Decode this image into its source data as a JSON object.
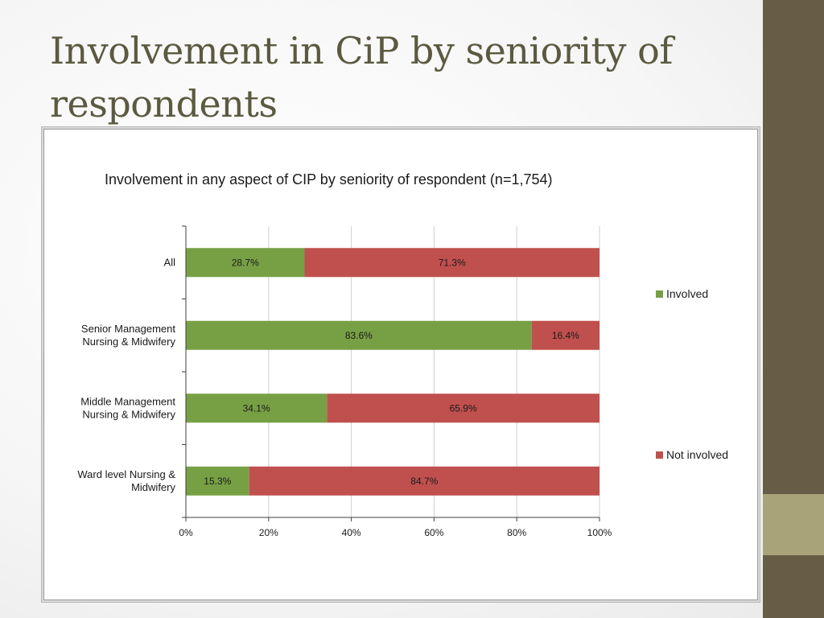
{
  "slide": {
    "title": "Involvement in CiP by seniority  of respondents"
  },
  "colors": {
    "sidebar_dark": "#675c45",
    "sidebar_light": "#a8a379",
    "title_text": "#5b5a40",
    "involved": "#77a044",
    "not_involved": "#c0504d",
    "gridline": "#cfcfcf",
    "axis": "#404040"
  },
  "chart_data": {
    "type": "bar",
    "orientation": "horizontal",
    "stacked": true,
    "title": "Involvement in any aspect of CIP  by seniority of respondent (n=1,754)",
    "categories": [
      [
        "All"
      ],
      [
        "Senior Management",
        "Nursing & Midwifery"
      ],
      [
        "Middle Management",
        "Nursing & Midwifery"
      ],
      [
        "Ward level  Nursing &",
        "Midwifery"
      ]
    ],
    "series": [
      {
        "name": "Involved",
        "values": [
          28.7,
          83.6,
          34.1,
          15.3
        ],
        "labels": [
          "28.7%",
          "83.6%",
          "34.1%",
          "15.3%"
        ]
      },
      {
        "name": "Not involved",
        "values": [
          71.3,
          16.4,
          65.9,
          84.7
        ],
        "labels": [
          "71.3%",
          "16.4%",
          "65.9%",
          "84.7%"
        ]
      }
    ],
    "xlim": [
      0,
      100
    ],
    "xticks": [
      0,
      20,
      40,
      60,
      80,
      100
    ],
    "xtick_labels": [
      "0%",
      "20%",
      "40%",
      "60%",
      "80%",
      "100%"
    ],
    "grid": true,
    "legend": [
      "Involved",
      "Not involved"
    ],
    "legend_position": "right"
  }
}
